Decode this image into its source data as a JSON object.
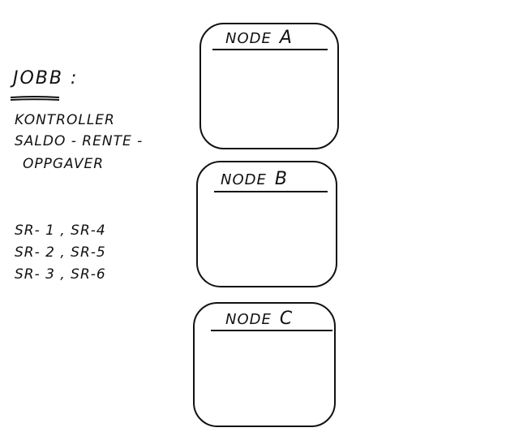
{
  "jobb": {
    "title": "JOBB :",
    "description_lines": [
      "KONTROLLER",
      "SALDO - RENTE -",
      "OPPGAVER"
    ],
    "task_lines": [
      "SR- 1 , SR-4",
      "SR- 2 , SR-5",
      "SR- 3 , SR-6"
    ]
  },
  "nodes": [
    {
      "label": "NODE",
      "letter": "A"
    },
    {
      "label": "NODE",
      "letter": "B"
    },
    {
      "label": "NODE",
      "letter": "C"
    }
  ],
  "colors": {
    "ink": "#111111",
    "background": "#ffffff"
  }
}
